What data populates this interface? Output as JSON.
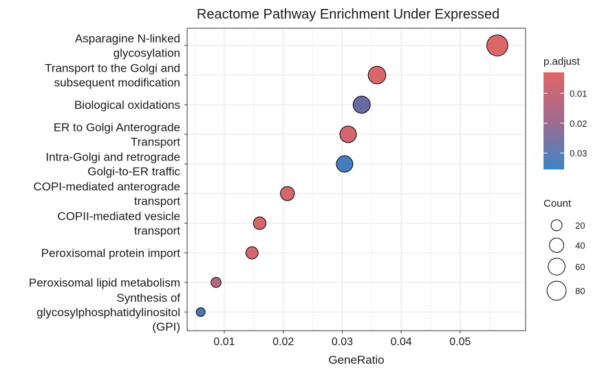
{
  "chart_data": {
    "type": "scatter",
    "title": "Reactome Pathway Enrichment Under Expressed",
    "xlabel": "GeneRatio",
    "ylabel": "",
    "xlim": [
      0.0037,
      0.0611
    ],
    "xticks": [
      "0.01",
      "0.02",
      "0.03",
      "0.04",
      "0.05"
    ],
    "xtick_values": [
      0.01,
      0.02,
      0.03,
      0.04,
      0.05
    ],
    "grid": true,
    "legend_position": "right",
    "points": [
      {
        "label": [
          "Asparagine N-linked",
          "glycosylation"
        ],
        "gene_ratio": 0.0563,
        "count": 100,
        "p_adjust": 0.004
      },
      {
        "label": [
          "Transport to the Golgi and",
          "subsequent modification"
        ],
        "gene_ratio": 0.0359,
        "count": 66,
        "p_adjust": 0.005
      },
      {
        "label": [
          "Biological oxidations"
        ],
        "gene_ratio": 0.0333,
        "count": 62,
        "p_adjust": 0.0285
      },
      {
        "label": [
          "ER to Golgi Anterograde",
          "Transport"
        ],
        "gene_ratio": 0.031,
        "count": 57,
        "p_adjust": 0.006
      },
      {
        "label": [
          "Intra-Golgi and retrograde",
          "Golgi-to-ER traffic"
        ],
        "gene_ratio": 0.0304,
        "count": 56,
        "p_adjust": 0.0345
      },
      {
        "label": [
          "COPI-mediated anterograde",
          "transport"
        ],
        "gene_ratio": 0.0207,
        "count": 38,
        "p_adjust": 0.006
      },
      {
        "label": [
          "COPII-mediated vesicle",
          "transport"
        ],
        "gene_ratio": 0.016,
        "count": 29,
        "p_adjust": 0.006
      },
      {
        "label": [
          "Peroxisomal protein import"
        ],
        "gene_ratio": 0.0147,
        "count": 27,
        "p_adjust": 0.006
      },
      {
        "label": [
          "Peroxisomal lipid metabolism"
        ],
        "gene_ratio": 0.0086,
        "count": 16,
        "p_adjust": 0.014
      },
      {
        "label": [
          "Synthesis of",
          "glycosylphosphatidylinositol",
          "(GPI)"
        ],
        "gene_ratio": 0.006,
        "count": 11,
        "p_adjust": 0.033
      }
    ],
    "color_legend": {
      "title": "p.adjust",
      "ticks": [
        "0.01",
        "0.02",
        "0.03"
      ],
      "tick_values": [
        0.01,
        0.02,
        0.03
      ],
      "range": [
        0.003,
        0.0355
      ],
      "low_color": "#e06666",
      "high_color": "#3d85c6"
    },
    "size_legend": {
      "title": "Count",
      "ticks": [
        "20",
        "40",
        "60",
        "80"
      ],
      "tick_values": [
        20,
        40,
        60,
        80
      ]
    }
  }
}
